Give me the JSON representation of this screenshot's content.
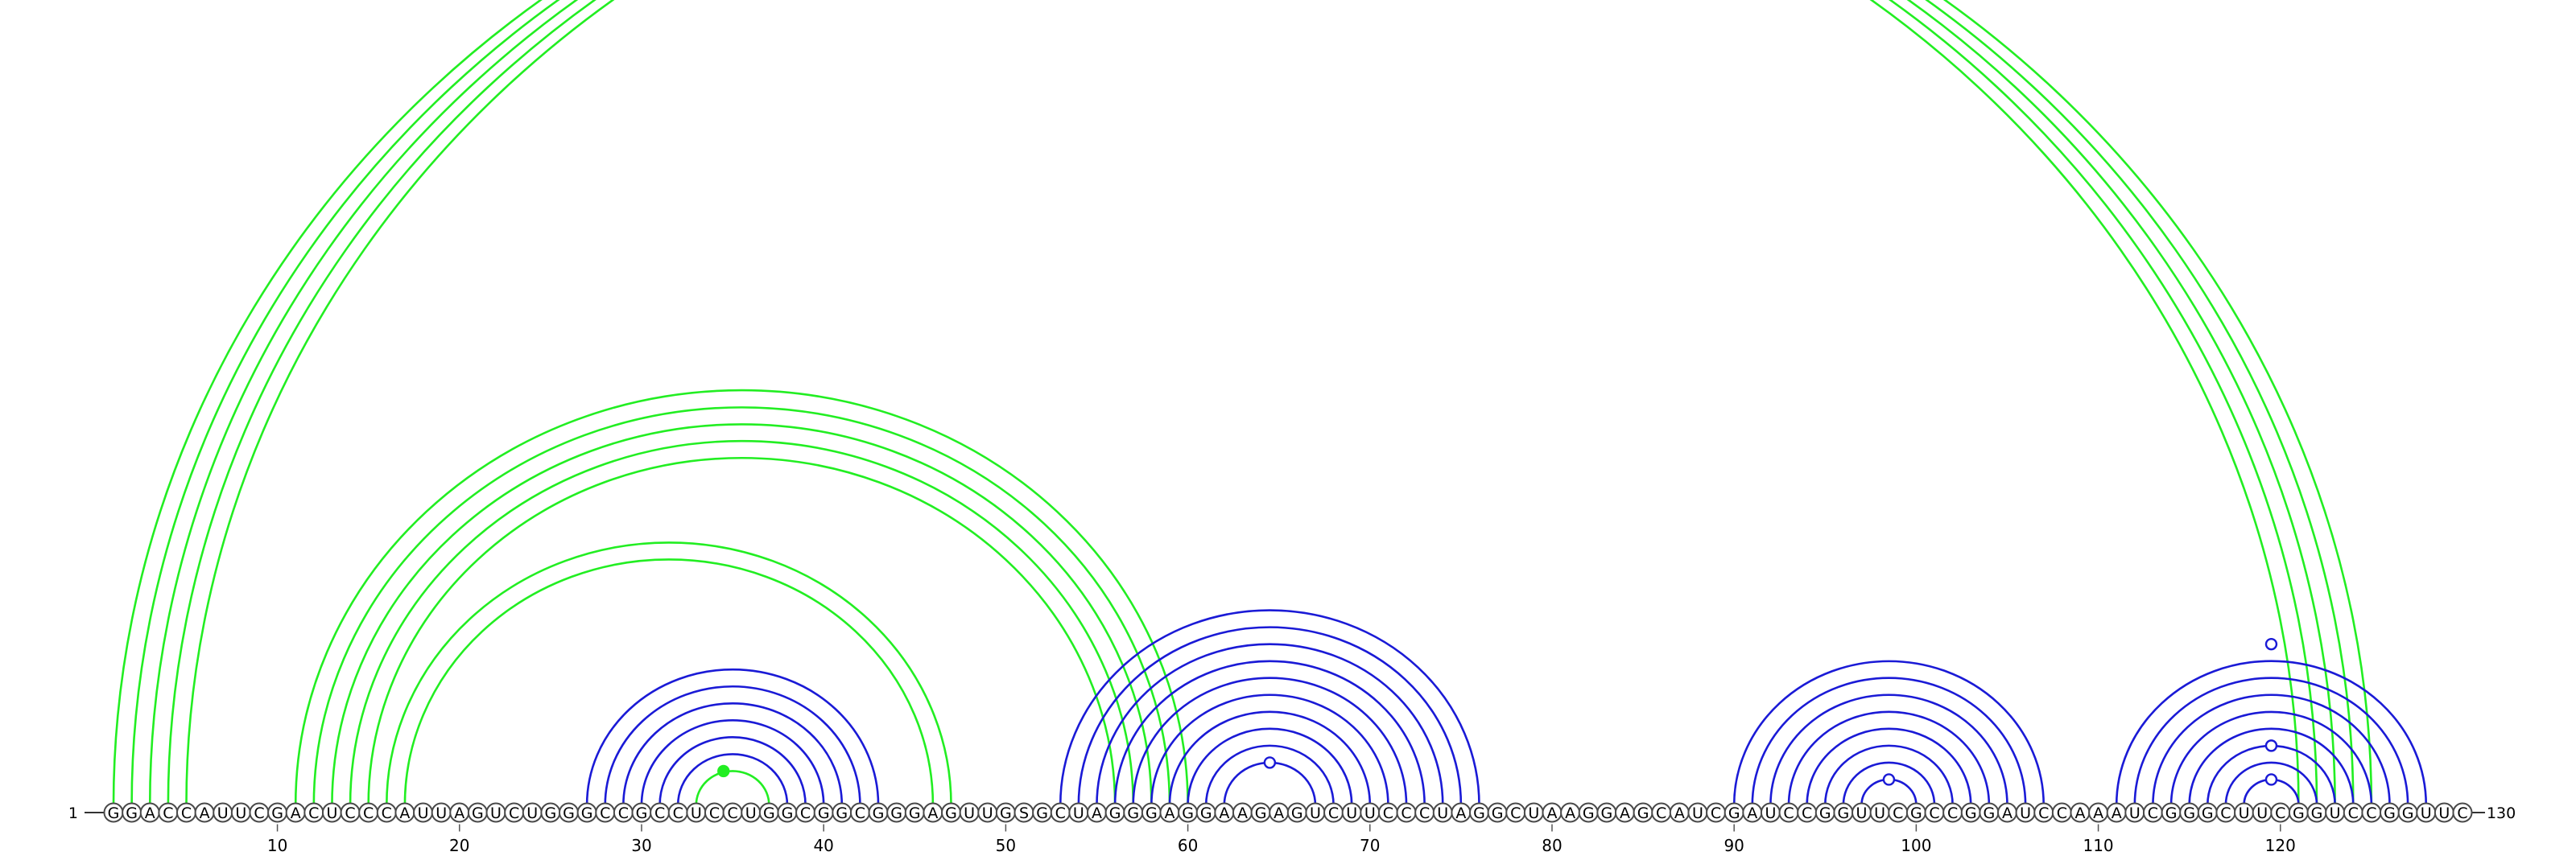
{
  "diagram": {
    "type": "rna-arc-diagram",
    "sequence": "GGACCAUUCGACUCCCAUUAGUCUGGGCCGCCUCCUGGCGGCGGGAGUUGSGCUAGGGAGGAAGAGUCUUCCCUAGGCUAAGGAGCAUCGAUCCGGUUCGCCGGAUCCAAAUCGGGCUUCGGUCCGGUUC",
    "start_label": "1",
    "end_label": "130",
    "ticks": [
      "10",
      "20",
      "30",
      "40",
      "50",
      "60",
      "70",
      "80",
      "90",
      "100",
      "110",
      "120"
    ],
    "colors": {
      "green": "#22ee22",
      "blue": "#1a1ad6",
      "outline": "#4a4a4a"
    },
    "arcs": [
      {
        "i": 1,
        "j": 121,
        "color": "green"
      },
      {
        "i": 2,
        "j": 122,
        "color": "green"
      },
      {
        "i": 3,
        "j": 123,
        "color": "green"
      },
      {
        "i": 4,
        "j": 124,
        "color": "green"
      },
      {
        "i": 5,
        "j": 125,
        "color": "green"
      },
      {
        "i": 11,
        "j": 60,
        "color": "green"
      },
      {
        "i": 12,
        "j": 59,
        "color": "green"
      },
      {
        "i": 13,
        "j": 58,
        "color": "green"
      },
      {
        "i": 14,
        "j": 57,
        "color": "green"
      },
      {
        "i": 15,
        "j": 56,
        "color": "green"
      },
      {
        "i": 16,
        "j": 47,
        "color": "green"
      },
      {
        "i": 17,
        "j": 46,
        "color": "green"
      },
      {
        "i": 33,
        "j": 37,
        "color": "green"
      },
      {
        "i": 27,
        "j": 43,
        "color": "blue"
      },
      {
        "i": 28,
        "j": 42,
        "color": "blue"
      },
      {
        "i": 29,
        "j": 41,
        "color": "blue"
      },
      {
        "i": 30,
        "j": 40,
        "color": "blue"
      },
      {
        "i": 31,
        "j": 39,
        "color": "blue"
      },
      {
        "i": 32,
        "j": 38,
        "color": "blue"
      },
      {
        "i": 53,
        "j": 76,
        "color": "blue"
      },
      {
        "i": 54,
        "j": 75,
        "color": "blue"
      },
      {
        "i": 55,
        "j": 74,
        "color": "blue"
      },
      {
        "i": 56,
        "j": 73,
        "color": "blue"
      },
      {
        "i": 57,
        "j": 72,
        "color": "blue"
      },
      {
        "i": 58,
        "j": 71,
        "color": "blue"
      },
      {
        "i": 59,
        "j": 70,
        "color": "blue"
      },
      {
        "i": 60,
        "j": 69,
        "color": "blue"
      },
      {
        "i": 61,
        "j": 68,
        "color": "blue"
      },
      {
        "i": 62,
        "j": 67,
        "color": "blue"
      },
      {
        "i": 90,
        "j": 107,
        "color": "blue"
      },
      {
        "i": 91,
        "j": 106,
        "color": "blue"
      },
      {
        "i": 92,
        "j": 105,
        "color": "blue"
      },
      {
        "i": 93,
        "j": 104,
        "color": "blue"
      },
      {
        "i": 94,
        "j": 103,
        "color": "blue"
      },
      {
        "i": 95,
        "j": 102,
        "color": "blue"
      },
      {
        "i": 96,
        "j": 101,
        "color": "blue"
      },
      {
        "i": 97,
        "j": 100,
        "color": "blue"
      },
      {
        "i": 111,
        "j": 128,
        "color": "blue"
      },
      {
        "i": 112,
        "j": 127,
        "color": "blue"
      },
      {
        "i": 113,
        "j": 126,
        "color": "blue"
      },
      {
        "i": 114,
        "j": 125,
        "color": "blue"
      },
      {
        "i": 115,
        "j": 124,
        "color": "blue"
      },
      {
        "i": 116,
        "j": 123,
        "color": "blue"
      },
      {
        "i": 117,
        "j": 122,
        "color": "blue"
      },
      {
        "i": 118,
        "j": 121,
        "color": "blue"
      }
    ],
    "markers": [
      {
        "pos": 34.5,
        "arc_span": 4,
        "color": "green",
        "filled": true
      },
      {
        "pos": 64.5,
        "arc_span": 5,
        "color": "blue",
        "filled": false
      },
      {
        "pos": 98.5,
        "arc_span": 3,
        "color": "blue",
        "filled": false
      },
      {
        "pos": 119.5,
        "arc_span": 3,
        "color": "blue",
        "filled": false
      },
      {
        "pos": 119.5,
        "arc_span": 7,
        "color": "blue",
        "filled": false
      },
      {
        "pos": 119.5,
        "arc_span": 19,
        "color": "blue",
        "filled": false
      }
    ]
  }
}
